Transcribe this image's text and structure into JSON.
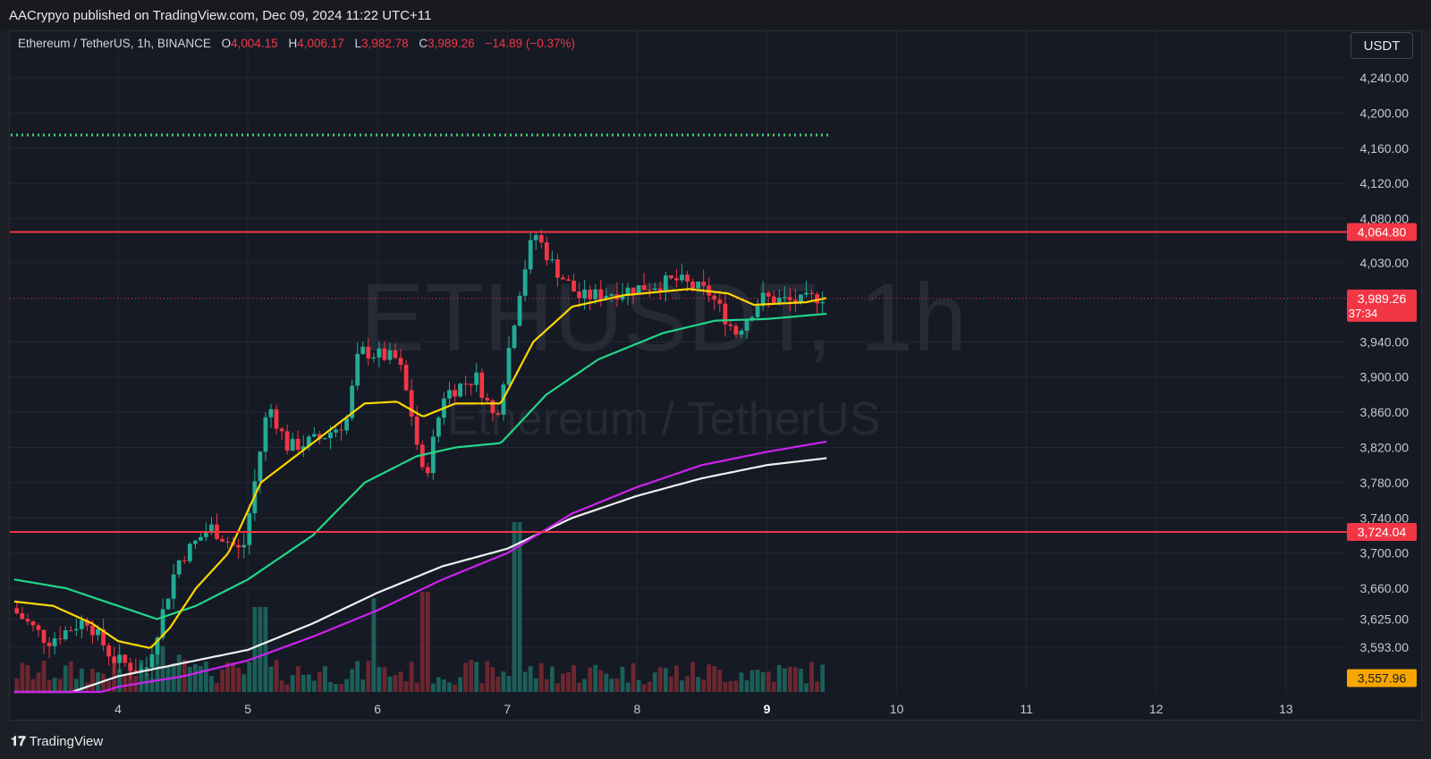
{
  "header": {
    "published": "AACrypyo published on TradingView.com, Dec 09, 2024 11:22 UTC+11"
  },
  "legend": {
    "symbol": "Ethereum / TetherUS, 1h, BINANCE",
    "o_label": "O",
    "o_value": "4,004.15",
    "h_label": "H",
    "h_value": "4,006.17",
    "l_label": "L",
    "l_value": "3,982.78",
    "c_label": "C",
    "c_value": "3,989.26",
    "change": "−14.89 (−0.37%)"
  },
  "currency": "USDT",
  "watermark": {
    "title": "ETHUSDT, 1h",
    "subtitle": "Ethereum / TetherUS"
  },
  "footer": {
    "brand": "TradingView"
  },
  "colors": {
    "up": "#22ab94",
    "down": "#f23645",
    "ema_fast": "#ffd700",
    "ema_mid": "#22d68a",
    "ma_white": "#f0f0f0",
    "ma_magenta": "#cc22ee",
    "dotted": "#3fd46a",
    "level": "#f23645"
  },
  "chart_data": {
    "type": "candlestick",
    "x_ticks": [
      "4",
      "5",
      "6",
      "7",
      "8",
      "9",
      "10",
      "11",
      "12",
      "13"
    ],
    "y_ticks": [
      "4,240.00",
      "4,200.00",
      "4,160.00",
      "4,120.00",
      "4,080.00",
      "4,030.00",
      "3,940.00",
      "3,900.00",
      "3,860.00",
      "3,820.00",
      "3,780.00",
      "3,740.00",
      "3,700.00",
      "3,660.00",
      "3,625.00",
      "3,593.00"
    ],
    "y_tick_values": [
      4240,
      4200,
      4160,
      4120,
      4080,
      4030,
      3940,
      3900,
      3860,
      3820,
      3780,
      3740,
      3700,
      3660,
      3625,
      3593
    ],
    "levels": [
      {
        "label": "4,064.80",
        "value": 4064.8
      },
      {
        "label": "3,724.04",
        "value": 3724.04
      }
    ],
    "dotted_level": 4175,
    "last_price": {
      "label": "3,989.26",
      "countdown": "37:34",
      "value": 3989.26
    },
    "low_marker": {
      "label": "3,557.96",
      "value": 3557.96
    },
    "price_keypoints": [
      [
        3.2,
        3640
      ],
      [
        3.5,
        3600
      ],
      [
        3.8,
        3625
      ],
      [
        4.0,
        3580
      ],
      [
        4.25,
        3565
      ],
      [
        4.5,
        3690
      ],
      [
        4.75,
        3730
      ],
      [
        5.0,
        3700
      ],
      [
        5.2,
        3870
      ],
      [
        5.35,
        3820
      ],
      [
        5.6,
        3830
      ],
      [
        5.8,
        3850
      ],
      [
        5.9,
        3930
      ],
      [
        6.2,
        3920
      ],
      [
        6.3,
        3860
      ],
      [
        6.4,
        3780
      ],
      [
        6.55,
        3880
      ],
      [
        6.8,
        3900
      ],
      [
        6.95,
        3850
      ],
      [
        7.15,
        4010
      ],
      [
        7.25,
        4065
      ],
      [
        7.4,
        4025
      ],
      [
        7.6,
        3990
      ],
      [
        8.0,
        4000
      ],
      [
        8.35,
        4010
      ],
      [
        8.6,
        3995
      ],
      [
        8.8,
        3950
      ],
      [
        9.0,
        3990
      ],
      [
        9.3,
        3985
      ],
      [
        9.45,
        3992
      ]
    ],
    "ema_fast": [
      [
        3.2,
        3645
      ],
      [
        3.5,
        3640
      ],
      [
        3.8,
        3620
      ],
      [
        4.0,
        3600
      ],
      [
        4.25,
        3592
      ],
      [
        4.4,
        3615
      ],
      [
        4.6,
        3660
      ],
      [
        4.85,
        3700
      ],
      [
        5.1,
        3780
      ],
      [
        5.5,
        3825
      ],
      [
        5.9,
        3870
      ],
      [
        6.15,
        3872
      ],
      [
        6.35,
        3855
      ],
      [
        6.6,
        3870
      ],
      [
        6.95,
        3870
      ],
      [
        7.2,
        3940
      ],
      [
        7.5,
        3980
      ],
      [
        7.9,
        3993
      ],
      [
        8.4,
        4000
      ],
      [
        8.7,
        3995
      ],
      [
        8.9,
        3982
      ],
      [
        9.3,
        3985
      ],
      [
        9.47,
        3990
      ]
    ],
    "ema_mid": [
      [
        3.2,
        3670
      ],
      [
        3.6,
        3660
      ],
      [
        4.0,
        3640
      ],
      [
        4.3,
        3625
      ],
      [
        4.6,
        3640
      ],
      [
        5.0,
        3670
      ],
      [
        5.5,
        3720
      ],
      [
        5.9,
        3780
      ],
      [
        6.3,
        3810
      ],
      [
        6.6,
        3820
      ],
      [
        6.95,
        3825
      ],
      [
        7.3,
        3880
      ],
      [
        7.7,
        3920
      ],
      [
        8.2,
        3950
      ],
      [
        8.6,
        3964
      ],
      [
        9.0,
        3966
      ],
      [
        9.47,
        3972
      ]
    ],
    "ma_white": [
      [
        3.2,
        3520
      ],
      [
        3.6,
        3540
      ],
      [
        4.0,
        3560
      ],
      [
        4.5,
        3575
      ],
      [
        5.0,
        3590
      ],
      [
        5.5,
        3620
      ],
      [
        6.0,
        3655
      ],
      [
        6.5,
        3685
      ],
      [
        7.0,
        3705
      ],
      [
        7.5,
        3740
      ],
      [
        8.0,
        3765
      ],
      [
        8.5,
        3785
      ],
      [
        9.0,
        3800
      ],
      [
        9.47,
        3808
      ]
    ],
    "ma_magenta": [
      [
        3.2,
        3510
      ],
      [
        3.6,
        3530
      ],
      [
        4.0,
        3548
      ],
      [
        4.5,
        3560
      ],
      [
        5.0,
        3578
      ],
      [
        5.5,
        3605
      ],
      [
        6.0,
        3635
      ],
      [
        6.5,
        3670
      ],
      [
        7.0,
        3700
      ],
      [
        7.5,
        3745
      ],
      [
        8.0,
        3775
      ],
      [
        8.5,
        3800
      ],
      [
        9.0,
        3815
      ],
      [
        9.47,
        3827
      ]
    ]
  }
}
